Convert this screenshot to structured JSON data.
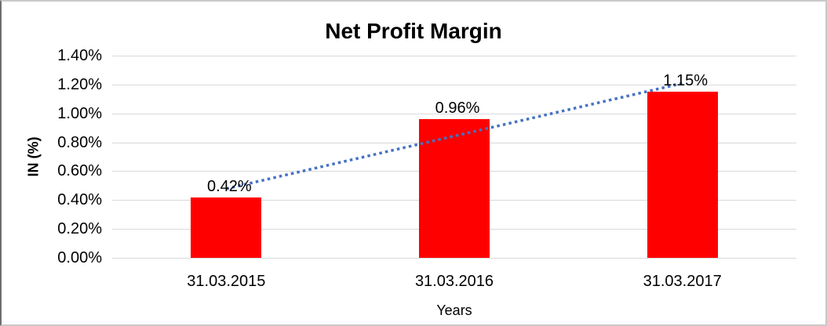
{
  "chart_data": {
    "type": "bar",
    "title": "Net Profit Margin",
    "xlabel": "Years",
    "ylabel": "IN (%)",
    "categories": [
      "31.03.2015",
      "31.03.2016",
      "31.03.2017"
    ],
    "values": [
      0.42,
      0.96,
      1.15
    ],
    "data_labels": [
      "0.42%",
      "0.96%",
      "1.15%"
    ],
    "ylim": [
      0,
      1.4
    ],
    "ytick_step": 0.2,
    "ytick_labels": [
      "0.00%",
      "0.20%",
      "0.40%",
      "0.60%",
      "0.80%",
      "1.00%",
      "1.20%",
      "1.40%"
    ],
    "grid": true,
    "legend_position": "none",
    "colors": {
      "bar": "#ff0000",
      "gridline": "#d9d9d9",
      "text": "#000000",
      "trendline": "#4472c4"
    },
    "trendline": {
      "type": "linear",
      "style": "dotted"
    }
  }
}
